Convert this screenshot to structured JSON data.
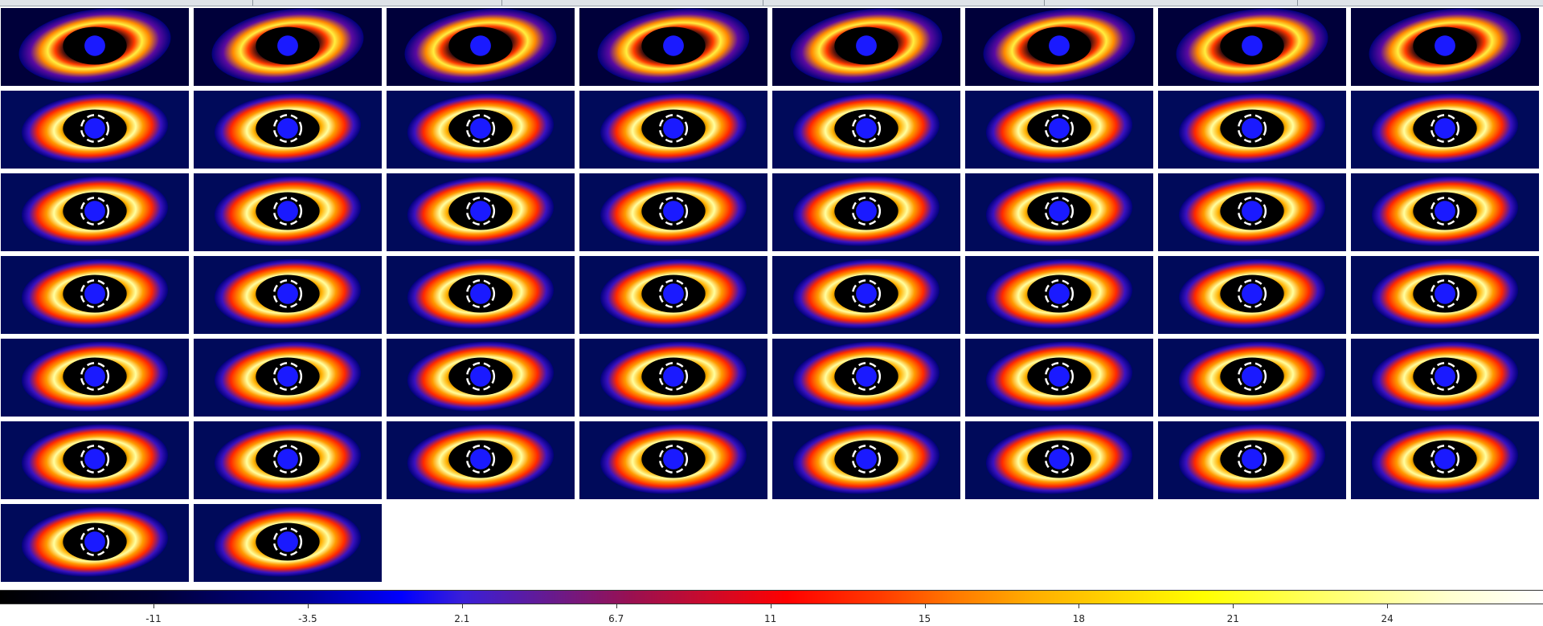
{
  "window": {
    "title": ""
  },
  "montage": {
    "rows": 7,
    "columns": 8,
    "frame_count": 50,
    "colormap": "heat"
  },
  "colorbar": {
    "tick_labels": [
      "-11",
      "-3.5",
      "2.1",
      "6.7",
      "11",
      "15",
      "18",
      "21",
      "24"
    ],
    "colors": {
      "low": "#000000",
      "blue": "#0000ff",
      "red": "#ff0000",
      "orange": "#ff7a00",
      "yellow": "#ffff00",
      "high": "#ffffff"
    }
  },
  "colors": {
    "background": "#ffffff",
    "tile_border": "#ffffff",
    "disk_background": "#000a5a",
    "center_mask": "#1a1aff"
  },
  "icons": {
    "frame": "image-frame-icon"
  }
}
